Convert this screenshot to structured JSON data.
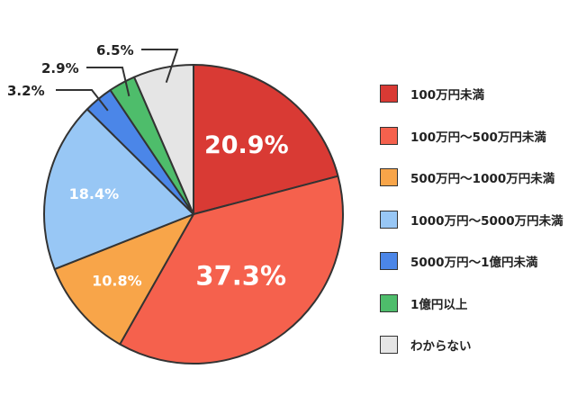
{
  "chart_data": {
    "type": "pie",
    "title": "",
    "legend_position": "right",
    "start": "top, clockwise",
    "slices": [
      {
        "label": "100万円未満",
        "value": 20.9,
        "display": "20.9%",
        "color": "#d93a34",
        "label_style": "inside-large"
      },
      {
        "label": "100万円〜500万円未満",
        "value": 37.3,
        "display": "37.3%",
        "color": "#f5614d",
        "label_style": "inside-large"
      },
      {
        "label": "500万円〜1000万円未満",
        "value": 10.8,
        "display": "10.8%",
        "color": "#f8a549",
        "label_style": "inside-small"
      },
      {
        "label": "1000万円〜5000万円未満",
        "value": 18.4,
        "display": "18.4%",
        "color": "#98c7f5",
        "label_style": "inside-small"
      },
      {
        "label": "5000万円〜1億円未満",
        "value": 3.2,
        "display": "3.2%",
        "color": "#4b86e8",
        "label_style": "outside"
      },
      {
        "label": "1億円以上",
        "value": 2.9,
        "display": "2.9%",
        "color": "#4ebd6b",
        "label_style": "outside"
      },
      {
        "label": "わからない",
        "value": 6.5,
        "display": "6.5%",
        "color": "#e5e5e5",
        "label_style": "outside"
      }
    ]
  }
}
